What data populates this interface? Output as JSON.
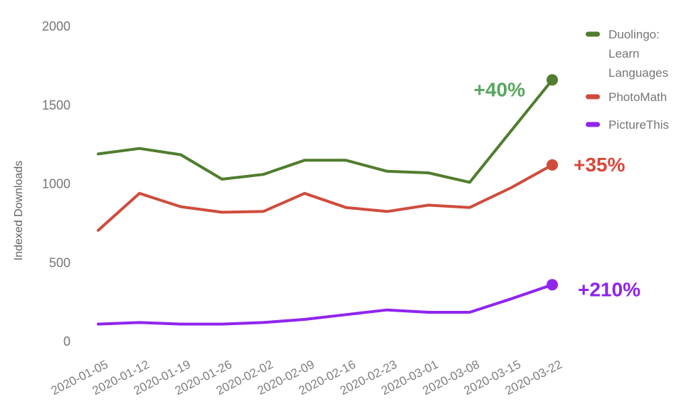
{
  "chart_data": {
    "type": "line",
    "title": "",
    "xlabel": "",
    "ylabel": "Indexed Downloads",
    "grid": false,
    "legend_position": "right",
    "ylim": [
      0,
      2000
    ],
    "y_ticks": [
      0,
      500,
      1000,
      1500,
      2000
    ],
    "x": [
      "2020-01-05",
      "2020-01-12",
      "2020-01-19",
      "2020-01-26",
      "2020-02-02",
      "2020-02-09",
      "2020-02-16",
      "2020-02-23",
      "2020-03-01",
      "2020-03-08",
      "2020-03-15",
      "2020-03-22"
    ],
    "series": [
      {
        "name": "Duolingo: Learn Languages",
        "legend_lines": [
          "Duolingo:",
          "Learn",
          "Languages"
        ],
        "color": "#507d2e",
        "values": [
          1190,
          1225,
          1185,
          1030,
          1060,
          1150,
          1150,
          1080,
          1070,
          1010,
          1335,
          1660
        ],
        "annotation": {
          "text": "+40%",
          "color": "#57a65f",
          "anchor": "end",
          "dx": -38,
          "dy": 23
        }
      },
      {
        "name": "PhotoMath",
        "legend_lines": [
          "PhotoMath"
        ],
        "color": "#cf4c3d",
        "values": [
          705,
          940,
          855,
          820,
          825,
          940,
          850,
          825,
          865,
          850,
          975,
          1120
        ],
        "annotation": {
          "text": "+35%",
          "color": "#d8473a",
          "anchor": "start",
          "dx": 30,
          "dy": 9
        }
      },
      {
        "name": "PictureThis",
        "legend_lines": [
          "PictureThis"
        ],
        "color": "#8f25ee",
        "values": [
          110,
          120,
          110,
          110,
          120,
          140,
          170,
          200,
          185,
          185,
          270,
          360
        ],
        "annotation": {
          "text": "+210%",
          "color": "#8e22ec",
          "anchor": "start",
          "dx": 36,
          "dy": 16
        }
      }
    ]
  }
}
